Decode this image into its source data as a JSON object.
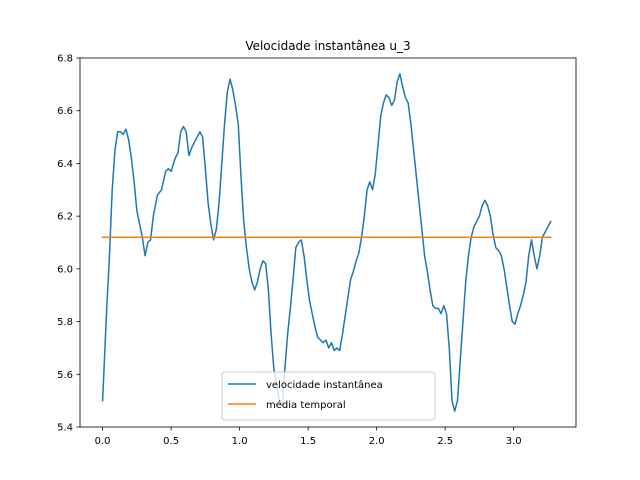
{
  "chart_data": {
    "type": "line",
    "title": "Velocidade instantânea u_3",
    "xlabel": "",
    "ylabel": "",
    "xlim": [
      -0.165,
      3.455
    ],
    "ylim": [
      5.4,
      6.8
    ],
    "xticks": [
      0.0,
      0.5,
      1.0,
      1.5,
      2.0,
      2.5,
      3.0
    ],
    "xtick_labels": [
      "0.0",
      "0.5",
      "1.0",
      "1.5",
      "2.0",
      "2.5",
      "3.0"
    ],
    "yticks": [
      5.4,
      5.6,
      5.8,
      6.0,
      6.2,
      6.4,
      6.6,
      6.8
    ],
    "ytick_labels": [
      "5.4",
      "5.6",
      "5.8",
      "6.0",
      "6.2",
      "6.4",
      "6.6",
      "6.8"
    ],
    "grid": false,
    "legend_position": "lower center",
    "series": [
      {
        "name": "velocidade instantânea",
        "color": "#1f77b4",
        "points": [
          [
            0.0,
            5.5
          ],
          [
            0.03,
            5.85
          ],
          [
            0.05,
            6.05
          ],
          [
            0.07,
            6.3
          ],
          [
            0.09,
            6.45
          ],
          [
            0.11,
            6.52
          ],
          [
            0.13,
            6.52
          ],
          [
            0.15,
            6.51
          ],
          [
            0.17,
            6.53
          ],
          [
            0.19,
            6.49
          ],
          [
            0.21,
            6.42
          ],
          [
            0.23,
            6.33
          ],
          [
            0.25,
            6.22
          ],
          [
            0.27,
            6.17
          ],
          [
            0.29,
            6.12
          ],
          [
            0.31,
            6.05
          ],
          [
            0.33,
            6.1
          ],
          [
            0.35,
            6.11
          ],
          [
            0.37,
            6.2
          ],
          [
            0.4,
            6.28
          ],
          [
            0.43,
            6.3
          ],
          [
            0.46,
            6.37
          ],
          [
            0.48,
            6.38
          ],
          [
            0.5,
            6.37
          ],
          [
            0.53,
            6.42
          ],
          [
            0.55,
            6.44
          ],
          [
            0.57,
            6.52
          ],
          [
            0.59,
            6.54
          ],
          [
            0.61,
            6.52
          ],
          [
            0.63,
            6.43
          ],
          [
            0.65,
            6.46
          ],
          [
            0.67,
            6.48
          ],
          [
            0.69,
            6.5
          ],
          [
            0.71,
            6.52
          ],
          [
            0.73,
            6.5
          ],
          [
            0.75,
            6.38
          ],
          [
            0.77,
            6.25
          ],
          [
            0.79,
            6.17
          ],
          [
            0.81,
            6.11
          ],
          [
            0.83,
            6.15
          ],
          [
            0.85,
            6.25
          ],
          [
            0.87,
            6.4
          ],
          [
            0.89,
            6.55
          ],
          [
            0.91,
            6.67
          ],
          [
            0.93,
            6.72
          ],
          [
            0.95,
            6.68
          ],
          [
            0.97,
            6.62
          ],
          [
            0.99,
            6.55
          ],
          [
            1.01,
            6.35
          ],
          [
            1.03,
            6.18
          ],
          [
            1.05,
            6.08
          ],
          [
            1.07,
            6.0
          ],
          [
            1.09,
            5.95
          ],
          [
            1.11,
            5.92
          ],
          [
            1.13,
            5.95
          ],
          [
            1.15,
            6.0
          ],
          [
            1.17,
            6.03
          ],
          [
            1.19,
            6.02
          ],
          [
            1.21,
            5.92
          ],
          [
            1.23,
            5.75
          ],
          [
            1.25,
            5.62
          ],
          [
            1.27,
            5.57
          ],
          [
            1.29,
            5.5
          ],
          [
            1.31,
            5.48
          ],
          [
            1.33,
            5.62
          ],
          [
            1.35,
            5.75
          ],
          [
            1.37,
            5.85
          ],
          [
            1.39,
            5.96
          ],
          [
            1.41,
            6.08
          ],
          [
            1.43,
            6.1
          ],
          [
            1.45,
            6.11
          ],
          [
            1.47,
            6.05
          ],
          [
            1.49,
            5.96
          ],
          [
            1.51,
            5.88
          ],
          [
            1.53,
            5.83
          ],
          [
            1.55,
            5.78
          ],
          [
            1.57,
            5.74
          ],
          [
            1.59,
            5.73
          ],
          [
            1.61,
            5.72
          ],
          [
            1.63,
            5.73
          ],
          [
            1.65,
            5.7
          ],
          [
            1.67,
            5.72
          ],
          [
            1.69,
            5.69
          ],
          [
            1.71,
            5.7
          ],
          [
            1.73,
            5.69
          ],
          [
            1.75,
            5.75
          ],
          [
            1.77,
            5.82
          ],
          [
            1.79,
            5.89
          ],
          [
            1.81,
            5.96
          ],
          [
            1.83,
            5.99
          ],
          [
            1.85,
            6.03
          ],
          [
            1.87,
            6.06
          ],
          [
            1.89,
            6.12
          ],
          [
            1.91,
            6.2
          ],
          [
            1.93,
            6.3
          ],
          [
            1.95,
            6.33
          ],
          [
            1.97,
            6.3
          ],
          [
            1.99,
            6.36
          ],
          [
            2.01,
            6.47
          ],
          [
            2.03,
            6.58
          ],
          [
            2.05,
            6.63
          ],
          [
            2.07,
            6.66
          ],
          [
            2.09,
            6.65
          ],
          [
            2.11,
            6.62
          ],
          [
            2.13,
            6.64
          ],
          [
            2.15,
            6.71
          ],
          [
            2.17,
            6.74
          ],
          [
            2.19,
            6.69
          ],
          [
            2.21,
            6.65
          ],
          [
            2.23,
            6.63
          ],
          [
            2.25,
            6.55
          ],
          [
            2.27,
            6.45
          ],
          [
            2.29,
            6.35
          ],
          [
            2.31,
            6.25
          ],
          [
            2.33,
            6.15
          ],
          [
            2.35,
            6.05
          ],
          [
            2.37,
            5.99
          ],
          [
            2.39,
            5.92
          ],
          [
            2.41,
            5.86
          ],
          [
            2.43,
            5.85
          ],
          [
            2.45,
            5.85
          ],
          [
            2.47,
            5.83
          ],
          [
            2.49,
            5.86
          ],
          [
            2.51,
            5.83
          ],
          [
            2.53,
            5.7
          ],
          [
            2.55,
            5.5
          ],
          [
            2.57,
            5.46
          ],
          [
            2.59,
            5.5
          ],
          [
            2.61,
            5.65
          ],
          [
            2.63,
            5.8
          ],
          [
            2.65,
            5.95
          ],
          [
            2.67,
            6.05
          ],
          [
            2.69,
            6.12
          ],
          [
            2.71,
            6.16
          ],
          [
            2.73,
            6.18
          ],
          [
            2.75,
            6.2
          ],
          [
            2.77,
            6.24
          ],
          [
            2.79,
            6.26
          ],
          [
            2.81,
            6.24
          ],
          [
            2.83,
            6.2
          ],
          [
            2.85,
            6.13
          ],
          [
            2.87,
            6.08
          ],
          [
            2.89,
            6.07
          ],
          [
            2.91,
            6.05
          ],
          [
            2.93,
            6.0
          ],
          [
            2.95,
            5.93
          ],
          [
            2.97,
            5.86
          ],
          [
            2.99,
            5.8
          ],
          [
            3.01,
            5.79
          ],
          [
            3.03,
            5.83
          ],
          [
            3.05,
            5.86
          ],
          [
            3.07,
            5.9
          ],
          [
            3.09,
            5.95
          ],
          [
            3.11,
            6.05
          ],
          [
            3.13,
            6.11
          ],
          [
            3.15,
            6.05
          ],
          [
            3.17,
            6.0
          ],
          [
            3.19,
            6.05
          ],
          [
            3.21,
            6.12
          ],
          [
            3.23,
            6.14
          ],
          [
            3.25,
            6.16
          ],
          [
            3.27,
            6.18
          ]
        ]
      },
      {
        "name": "média temporal",
        "color": "#ff7f0e",
        "points": [
          [
            0.0,
            6.12
          ],
          [
            3.27,
            6.12
          ]
        ]
      }
    ]
  }
}
